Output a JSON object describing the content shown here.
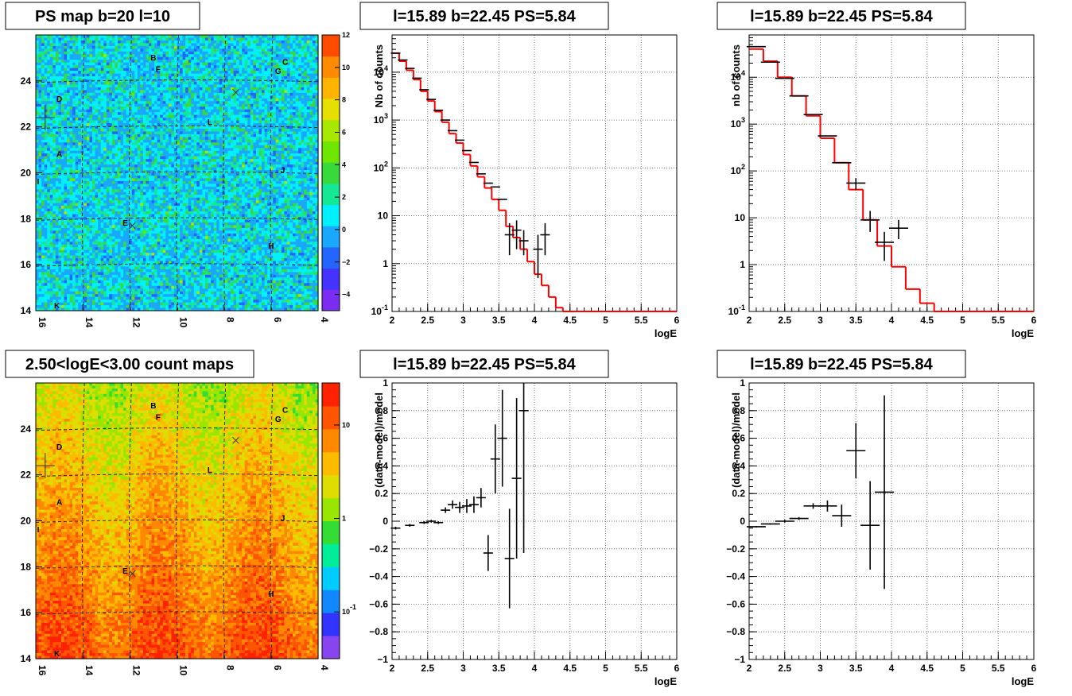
{
  "chart_data": [
    {
      "type": "heatmap",
      "title": "PS map b=20 l=10",
      "x_range": [
        16,
        4
      ],
      "y_range": [
        14,
        26
      ],
      "x_ticks": [
        "16",
        "14",
        "12",
        "10",
        "8",
        "6",
        "4"
      ],
      "y_ticks": [
        "14",
        "16",
        "18",
        "20",
        "22",
        "24"
      ],
      "colorbar": {
        "min": -5,
        "max": 12,
        "ticks": [
          "-4",
          "-2",
          "0",
          "2",
          "4",
          "6",
          "8",
          "10",
          "12"
        ]
      },
      "labels": [
        {
          "text": "A",
          "l": 15.0,
          "b": 20.7
        },
        {
          "text": "B",
          "l": 11.0,
          "b": 24.9
        },
        {
          "text": "C",
          "l": 5.4,
          "b": 24.7
        },
        {
          "text": "D",
          "l": 15.0,
          "b": 23.1
        },
        {
          "text": "E",
          "l": 12.2,
          "b": 17.7
        },
        {
          "text": "F",
          "l": 10.8,
          "b": 24.4
        },
        {
          "text": "G",
          "l": 5.7,
          "b": 24.3
        },
        {
          "text": "H",
          "l": 6.0,
          "b": 16.7
        },
        {
          "text": "I",
          "l": 15.9,
          "b": 19.5
        },
        {
          "text": "J",
          "l": 5.5,
          "b": 20.0
        },
        {
          "text": "K",
          "l": 15.1,
          "b": 14.1
        },
        {
          "text": "L",
          "l": 8.6,
          "b": 22.1
        }
      ],
      "markers": [
        {
          "symbol": "x",
          "l": 7.5,
          "b": 23.5
        },
        {
          "symbol": "x",
          "l": 11.9,
          "b": 17.7
        },
        {
          "symbol": "+",
          "l": 15.6,
          "b": 22.4
        }
      ]
    },
    {
      "type": "line",
      "title": "l=15.89 b=22.45 PS=5.84",
      "xlabel": "logE",
      "ylabel": "Nb of counts",
      "xlim": [
        2,
        6
      ],
      "ylim": [
        0.1,
        60000
      ],
      "yscale": "log",
      "x_ticks": [
        "2",
        "2.5",
        "3",
        "3.5",
        "4",
        "4.5",
        "5",
        "5.5",
        "6"
      ],
      "y_ticks": [
        "10^-1",
        "1",
        "10",
        "10^2",
        "10^3",
        "10^4"
      ],
      "series": [
        {
          "style": "red-step",
          "x": [
            2.0,
            2.1,
            2.2,
            2.3,
            2.4,
            2.5,
            2.6,
            2.7,
            2.8,
            2.9,
            3.0,
            3.1,
            3.2,
            3.3,
            3.4,
            3.5,
            3.6,
            3.7,
            3.8,
            3.9,
            4.0,
            4.1,
            4.2,
            4.3,
            4.4,
            6.0
          ],
          "values": [
            25000,
            17000,
            11000,
            7000,
            4000,
            2500,
            1500,
            900,
            520,
            330,
            190,
            110,
            65,
            38,
            22,
            13,
            6,
            3.5,
            2,
            1.1,
            0.6,
            0.35,
            0.2,
            0.12,
            0.1,
            0.1
          ]
        },
        {
          "style": "error-points",
          "x": [
            2.05,
            2.15,
            2.25,
            2.35,
            2.45,
            2.55,
            2.65,
            2.75,
            2.85,
            2.95,
            3.05,
            3.15,
            3.25,
            3.35,
            3.45,
            3.55,
            3.65,
            3.75,
            3.85,
            4.05,
            4.15
          ],
          "values": [
            25000,
            18000,
            12000,
            7500,
            4300,
            2700,
            1600,
            1000,
            600,
            380,
            230,
            130,
            75,
            48,
            40,
            22,
            4,
            5,
            3,
            2,
            4
          ],
          "err_low": [
            0,
            0,
            0,
            0,
            0,
            0,
            0,
            0,
            0,
            0,
            0,
            0,
            0,
            0,
            0,
            0,
            2.5,
            3,
            1.5,
            1.5,
            2.5
          ],
          "err_high": [
            0,
            0,
            0,
            0,
            0,
            0,
            0,
            0,
            0,
            0,
            0,
            0,
            0,
            0,
            0,
            0,
            3,
            3,
            2,
            2,
            3
          ]
        }
      ]
    },
    {
      "type": "line",
      "title": "l=15.89 b=22.45 PS=5.84",
      "xlabel": "logE",
      "ylabel": "nb of counts",
      "xlim": [
        2,
        6
      ],
      "ylim": [
        0.1,
        80000
      ],
      "yscale": "log",
      "x_ticks": [
        "2",
        "2.5",
        "3",
        "3.5",
        "4",
        "4.5",
        "5",
        "5.5",
        "6"
      ],
      "y_ticks": [
        "10^-1",
        "1",
        "10",
        "10^2",
        "10^3",
        "10^4"
      ],
      "series": [
        {
          "style": "red-step",
          "x": [
            2.0,
            2.2,
            2.4,
            2.6,
            2.8,
            3.0,
            3.2,
            3.4,
            3.6,
            3.8,
            4.0,
            4.2,
            4.4,
            4.6,
            6.0
          ],
          "values": [
            40000,
            22000,
            10000,
            4000,
            1500,
            500,
            150,
            40,
            9,
            2.5,
            0.9,
            0.3,
            0.15,
            0.1,
            0.1
          ]
        },
        {
          "style": "error-points",
          "x": [
            2.1,
            2.3,
            2.5,
            2.7,
            2.9,
            3.1,
            3.3,
            3.5,
            3.7,
            3.9,
            4.1
          ],
          "values": [
            45000,
            21000,
            9500,
            4000,
            1600,
            560,
            150,
            55,
            9,
            3,
            6
          ],
          "err_low": [
            0,
            0,
            0,
            0,
            0,
            0,
            0,
            15,
            4,
            1.8,
            2.5
          ],
          "err_high": [
            0,
            0,
            0,
            0,
            0,
            0,
            0,
            15,
            5,
            2,
            3
          ]
        }
      ]
    },
    {
      "type": "heatmap",
      "title": "2.50<logE<3.00 count maps",
      "x_range": [
        16,
        4
      ],
      "y_range": [
        14,
        26
      ],
      "x_ticks": [
        "16",
        "14",
        "12",
        "10",
        "8",
        "6",
        "4"
      ],
      "y_ticks": [
        "14",
        "16",
        "18",
        "20",
        "22",
        "24"
      ],
      "colorbar": {
        "scale": "log",
        "ticks": [
          "10^-1",
          "1",
          "10"
        ]
      },
      "labels": [
        {
          "text": "A",
          "l": 15.0,
          "b": 20.7
        },
        {
          "text": "B",
          "l": 11.0,
          "b": 24.9
        },
        {
          "text": "C",
          "l": 5.4,
          "b": 24.7
        },
        {
          "text": "D",
          "l": 15.0,
          "b": 23.1
        },
        {
          "text": "E",
          "l": 12.2,
          "b": 17.7
        },
        {
          "text": "F",
          "l": 10.8,
          "b": 24.4
        },
        {
          "text": "G",
          "l": 5.7,
          "b": 24.3
        },
        {
          "text": "H",
          "l": 6.0,
          "b": 16.7
        },
        {
          "text": "I",
          "l": 15.9,
          "b": 19.5
        },
        {
          "text": "J",
          "l": 5.5,
          "b": 20.0
        },
        {
          "text": "K",
          "l": 15.1,
          "b": 14.1
        },
        {
          "text": "L",
          "l": 8.6,
          "b": 22.1
        }
      ],
      "markers": [
        {
          "symbol": "x",
          "l": 7.5,
          "b": 23.5
        },
        {
          "symbol": "x",
          "l": 11.9,
          "b": 17.7
        },
        {
          "symbol": "+",
          "l": 15.6,
          "b": 22.4
        }
      ]
    },
    {
      "type": "scatter",
      "title": "l=15.89 b=22.45 PS=5.84",
      "xlabel": "logE",
      "ylabel": "(data-model)/model",
      "xlim": [
        2,
        6
      ],
      "ylim": [
        -1,
        1
      ],
      "x_ticks": [
        "2",
        "2.5",
        "3",
        "3.5",
        "4",
        "4.5",
        "5",
        "5.5",
        "6"
      ],
      "y_ticks": [
        "-1",
        "-0.8",
        "-0.6",
        "-0.4",
        "-0.2",
        "0",
        "0.2",
        "0.4",
        "0.6",
        "0.8",
        "1"
      ],
      "series": [
        {
          "style": "error-points",
          "x": [
            2.05,
            2.25,
            2.45,
            2.55,
            2.65,
            2.75,
            2.85,
            2.95,
            3.05,
            3.15,
            3.25,
            3.35,
            3.45,
            3.55,
            3.65,
            3.75,
            3.85
          ],
          "values": [
            -0.05,
            -0.03,
            -0.01,
            0.0,
            -0.01,
            0.08,
            0.12,
            0.1,
            0.11,
            0.12,
            0.17,
            -0.23,
            0.45,
            0.6,
            -0.27,
            0.31,
            0.8
          ],
          "err": [
            0.01,
            0.01,
            0.01,
            0.01,
            0.01,
            0.02,
            0.03,
            0.04,
            0.05,
            0.06,
            0.07,
            0.13,
            0.25,
            0.35,
            0.36,
            0.58,
            1.03
          ]
        }
      ]
    },
    {
      "type": "scatter",
      "title": "l=15.89 b=22.45 PS=5.84",
      "xlabel": "logE",
      "ylabel": "(data-model)/model",
      "xlim": [
        2,
        6
      ],
      "ylim": [
        -1,
        1
      ],
      "x_ticks": [
        "2",
        "2.5",
        "3",
        "3.5",
        "4",
        "4.5",
        "5",
        "5.5",
        "6"
      ],
      "y_ticks": [
        "-1",
        "-0.8",
        "-0.6",
        "-0.4",
        "-0.2",
        "0",
        "0.2",
        "0.4",
        "0.6",
        "0.8",
        "1"
      ],
      "series": [
        {
          "style": "error-points",
          "x": [
            2.1,
            2.3,
            2.5,
            2.7,
            2.9,
            3.1,
            3.3,
            3.5,
            3.7,
            3.9
          ],
          "values": [
            -0.04,
            -0.02,
            0.0,
            0.02,
            0.11,
            0.11,
            0.04,
            0.51,
            -0.03,
            0.21
          ],
          "err": [
            0.005,
            0.005,
            0.01,
            0.01,
            0.02,
            0.04,
            0.08,
            0.2,
            0.32,
            0.7
          ]
        }
      ]
    }
  ]
}
